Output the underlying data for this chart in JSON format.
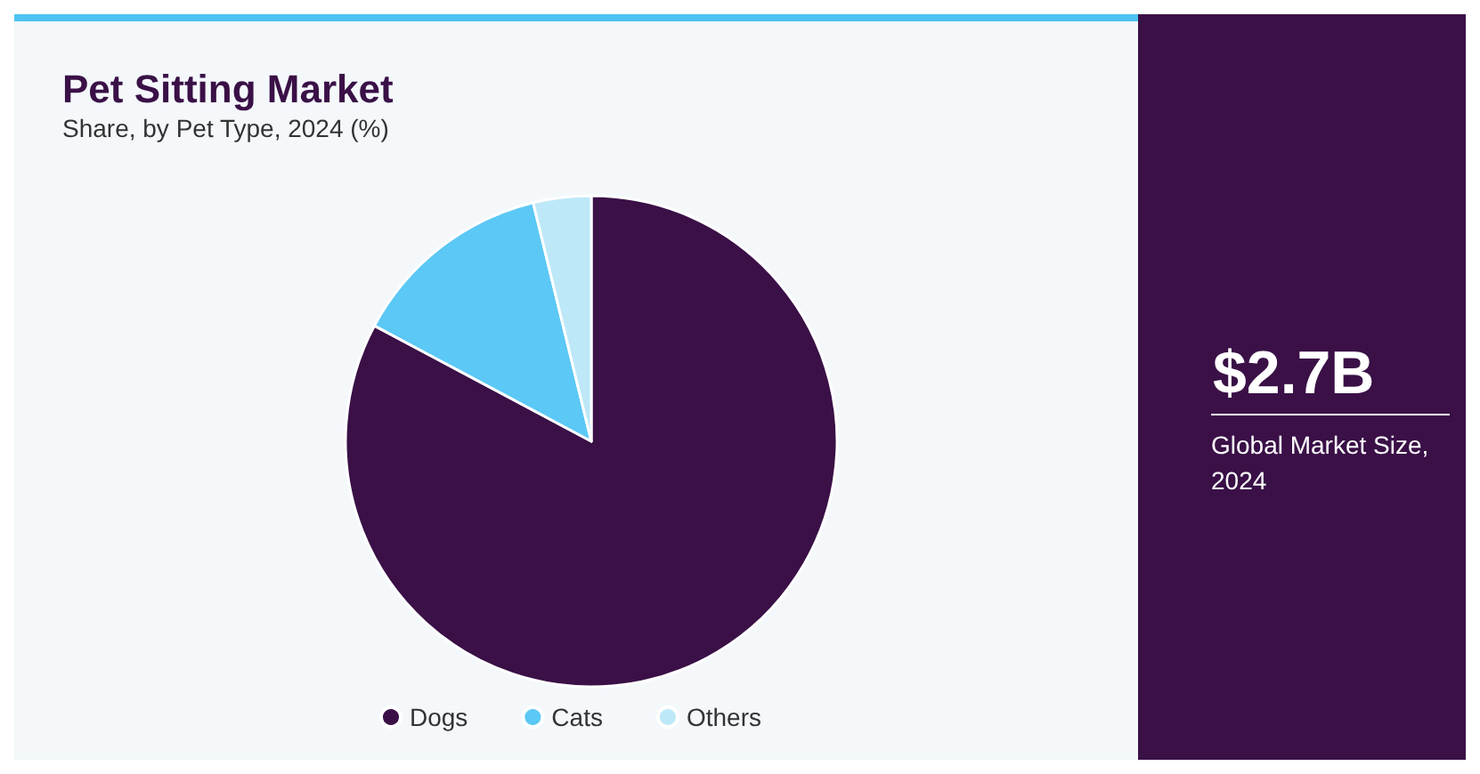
{
  "chart_data": {
    "type": "pie",
    "title": "Pet Sitting Market",
    "subtitle": "Share, by Pet Type, 2024 (%)",
    "categories": [
      "Dogs",
      "Cats",
      "Others"
    ],
    "values": [
      82.8,
      13.4,
      3.8
    ],
    "colors": [
      "#3a1047",
      "#5bc8f5",
      "#bde8f8"
    ],
    "legend": "bottom",
    "annotations": [
      "$2.7B",
      "Global Market Size, 2024"
    ]
  }
}
